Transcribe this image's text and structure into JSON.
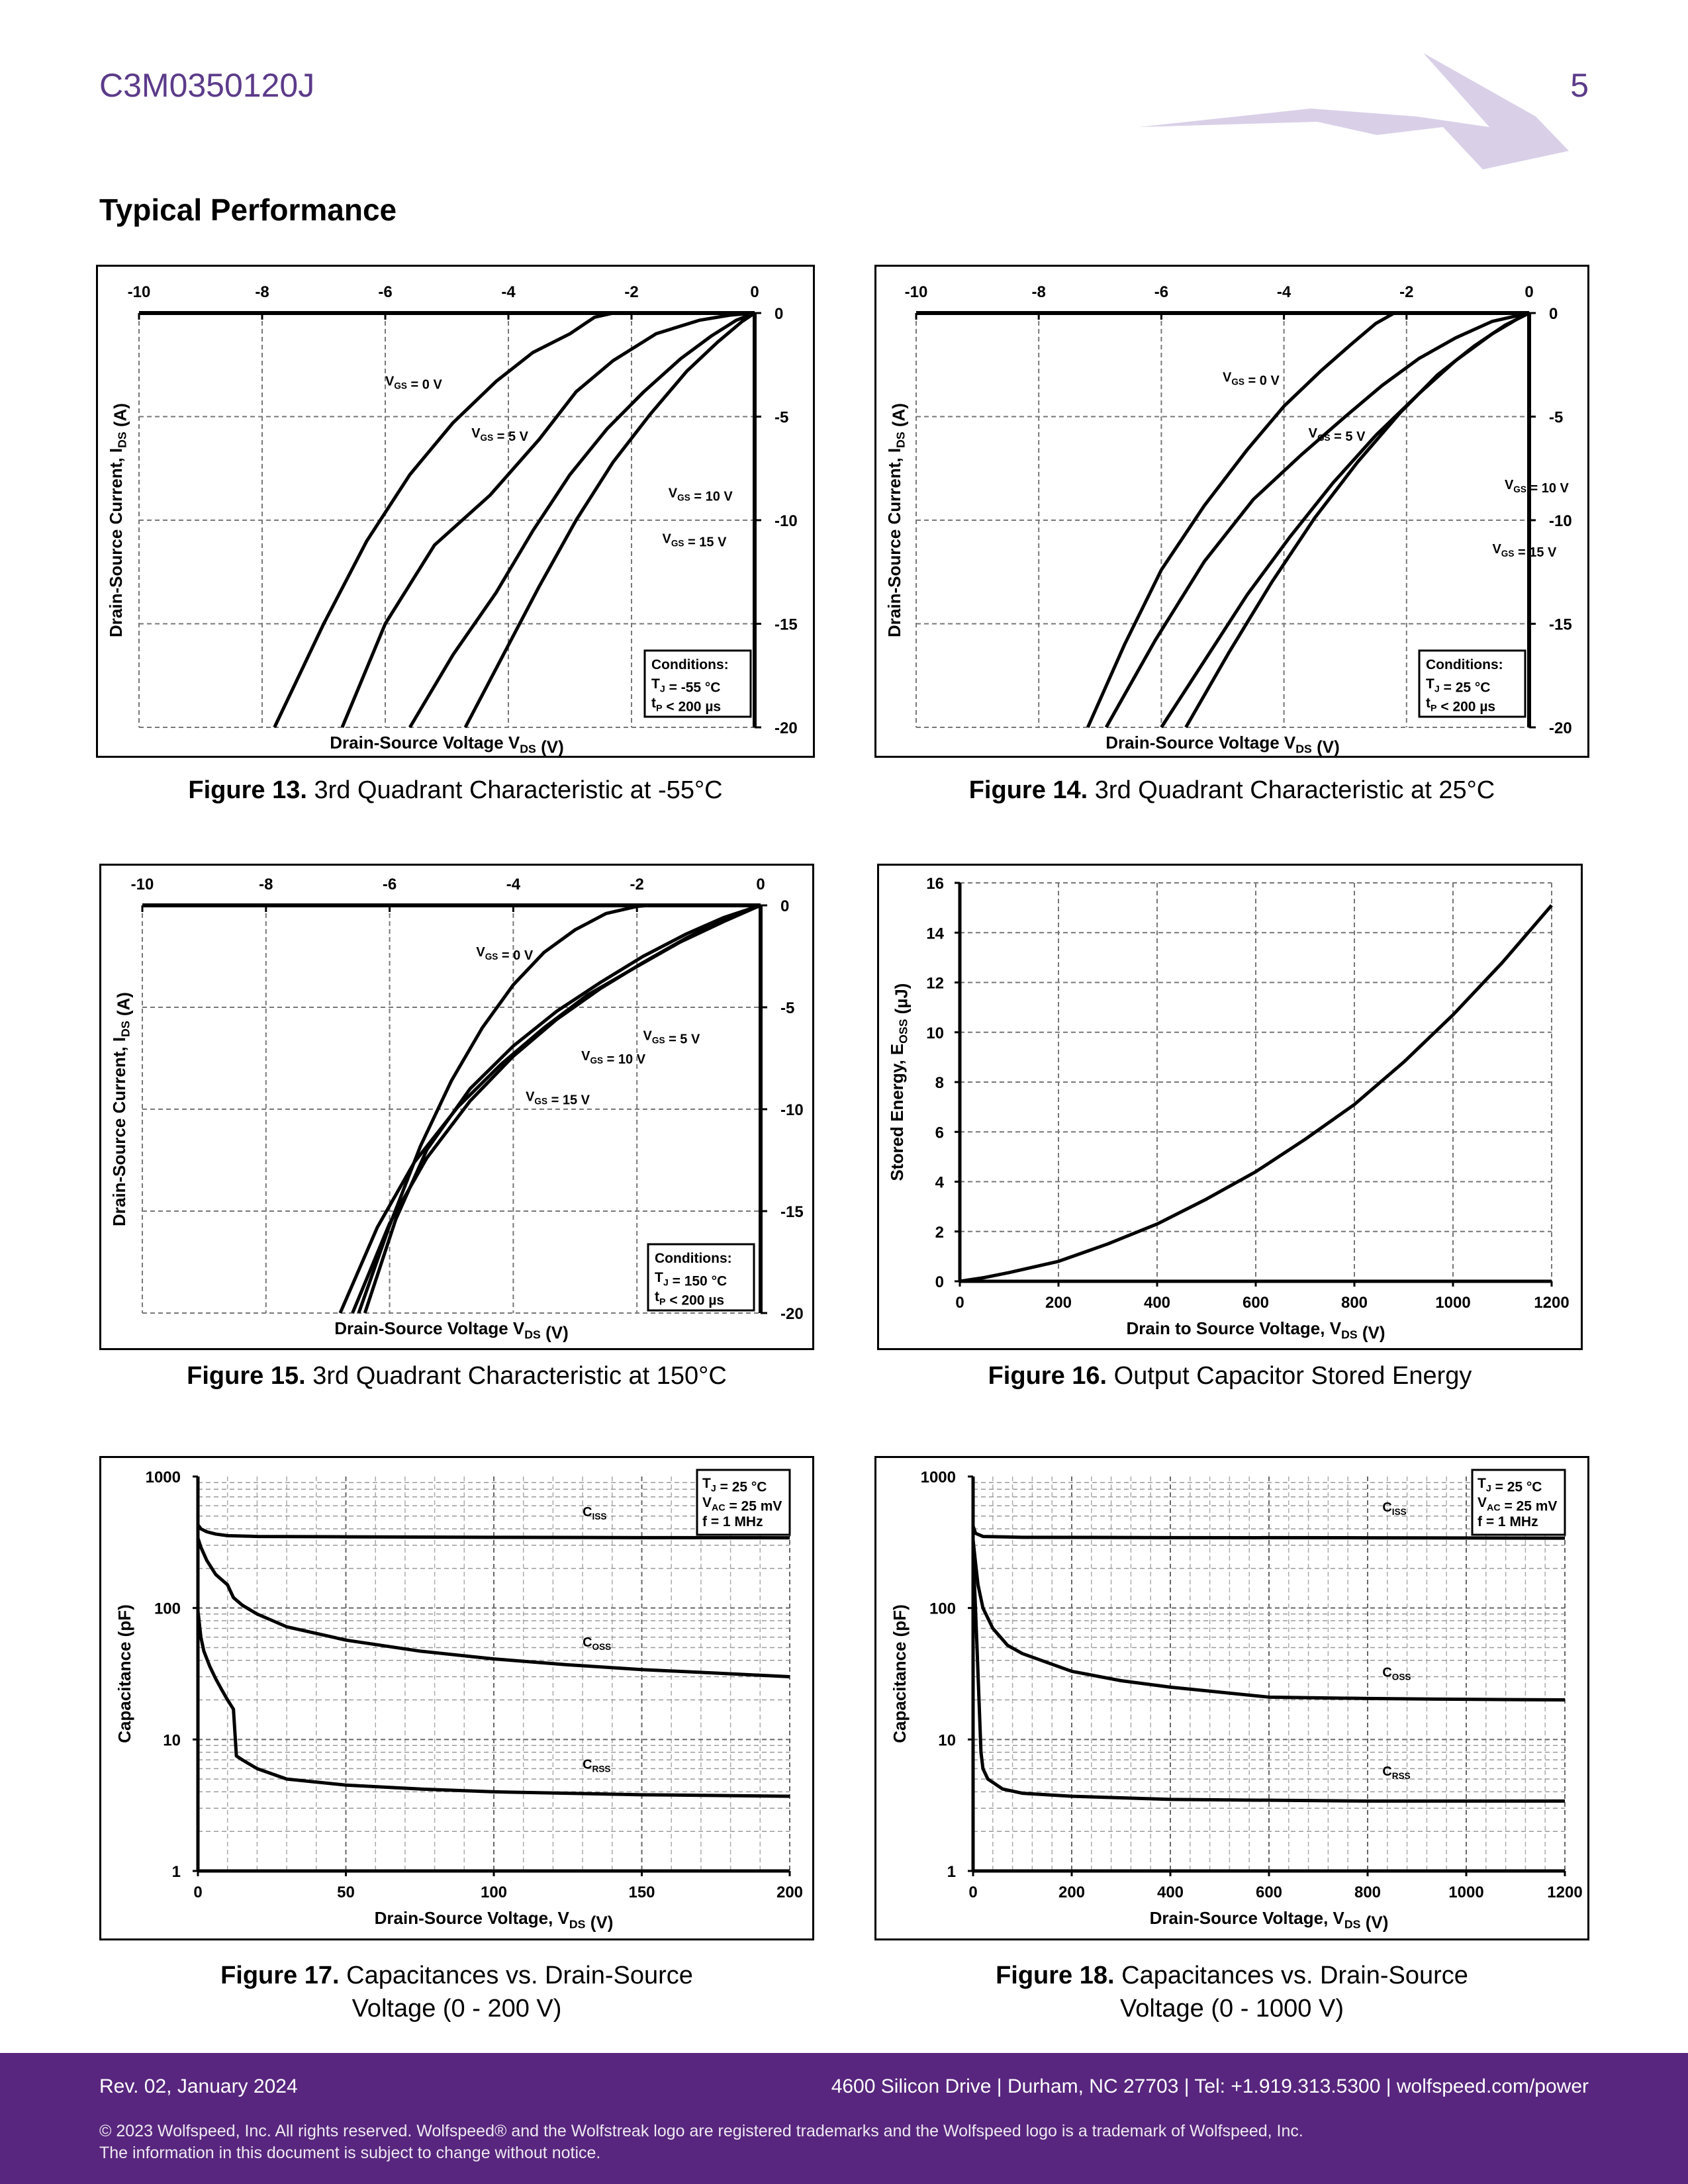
{
  "header": {
    "part_number": "C3M0350120J",
    "page_number": "5",
    "section_title": "Typical Performance"
  },
  "footer": {
    "revision": "Rev. 02, January 2024",
    "address": "4600 Silicon Drive  |  Durham, NC 27703  |  Tel: +1.919.313.5300  |  wolfspeed.com/power",
    "legal_line1": "© 2023 Wolfspeed, Inc. All rights reserved. Wolfspeed® and the Wolfstreak logo are registered trademarks and the Wolfspeed logo is a trademark of Wolfspeed, Inc.",
    "legal_line2": "The information in this document is subject to change without notice."
  },
  "captions": [
    {
      "label": "Figure 13.",
      "text": " 3rd Quadrant Characteristic at -55°C"
    },
    {
      "label": "Figure 14.",
      "text": " 3rd Quadrant Characteristic at 25°C"
    },
    {
      "label": "Figure 15.",
      "text": " 3rd Quadrant Characteristic at 150°C"
    },
    {
      "label": "Figure 16.",
      "text": " Output Capacitor Stored Energy"
    },
    {
      "label": "Figure 17.",
      "text": " Capacitances vs. Drain-Source",
      "line2": "Voltage (0 - 200 V)"
    },
    {
      "label": "Figure 18.",
      "text": " Capacitances vs. Drain-Source",
      "line2": "Voltage (0 - 1000 V)"
    }
  ],
  "colors": {
    "brand_purple": "#58267e",
    "header_purple": "#5c3b8a",
    "logo_lilac": "#d9d0e8"
  },
  "chart_data": [
    {
      "type": "line",
      "id": "fig13",
      "xlabel": "Drain-Source Voltage V_DS (V)",
      "ylabel": "Drain-Source Current, I_DS (A)",
      "xlim": [
        -10,
        0
      ],
      "ylim": [
        -20,
        0
      ],
      "x_ticks": [
        -10,
        -8,
        -6,
        -4,
        -2,
        0
      ],
      "y_ticks": [
        0,
        -5,
        -10,
        -15,
        -20
      ],
      "conditions": [
        "Conditions:",
        "T_J = -55 °C",
        "t_p < 200 µs"
      ],
      "series": [
        {
          "name": "V_GS = 0 V",
          "x": [
            -7.8,
            -7.0,
            -6.3,
            -5.6,
            -4.9,
            -4.2,
            -3.6,
            -3.0,
            -2.6,
            -2.3,
            -1.5,
            0
          ],
          "y": [
            -20,
            -15,
            -11,
            -7.8,
            -5.3,
            -3.3,
            -1.9,
            -1.0,
            -0.2,
            0,
            0,
            0
          ]
        },
        {
          "name": "V_GS = 5 V",
          "x": [
            -6.7,
            -6.0,
            -5.2,
            -4.3,
            -3.5,
            -2.9,
            -2.3,
            -1.6,
            -0.9,
            -0.4,
            0
          ],
          "y": [
            -20,
            -15,
            -11.2,
            -8.8,
            -6.1,
            -3.8,
            -2.3,
            -1.0,
            -0.35,
            -0.1,
            0
          ]
        },
        {
          "name": "V_GS = 10 V",
          "x": [
            -5.6,
            -4.9,
            -4.2,
            -3.6,
            -3.0,
            -2.4,
            -1.8,
            -1.2,
            -0.7,
            -0.3,
            0
          ],
          "y": [
            -20,
            -16.5,
            -13.5,
            -10.5,
            -7.8,
            -5.6,
            -3.8,
            -2.2,
            -1.1,
            -0.35,
            0
          ]
        },
        {
          "name": "V_GS = 15 V",
          "x": [
            -4.7,
            -4.1,
            -3.5,
            -2.9,
            -2.3,
            -1.7,
            -1.1,
            -0.6,
            -0.2,
            0
          ],
          "y": [
            -20,
            -16.6,
            -13.2,
            -10.0,
            -7.2,
            -4.9,
            -2.8,
            -1.4,
            -0.4,
            0
          ]
        }
      ],
      "annotations": [
        {
          "text": "V_GS = 0 V",
          "x": -6.0,
          "y": -3.5
        },
        {
          "text": "V_GS = 5 V",
          "x": -4.6,
          "y": -6.0
        },
        {
          "text": "V_GS = 10 V",
          "x": -1.4,
          "y": -8.9
        },
        {
          "text": "V_GS = 15 V",
          "x": -1.5,
          "y": -11.1
        }
      ]
    },
    {
      "type": "line",
      "id": "fig14",
      "xlabel": "Drain-Source Voltage V_DS (V)",
      "ylabel": "Drain-Source Current, I_DS (A)",
      "xlim": [
        -10,
        0
      ],
      "ylim": [
        -20,
        0
      ],
      "x_ticks": [
        -10,
        -8,
        -6,
        -4,
        -2,
        0
      ],
      "y_ticks": [
        0,
        -5,
        -10,
        -15,
        -20
      ],
      "conditions": [
        "Conditions:",
        "T_J = 25 °C",
        "t_p < 200 µs"
      ],
      "series": [
        {
          "name": "V_GS = 0 V",
          "x": [
            -7.2,
            -6.6,
            -6.0,
            -5.3,
            -4.6,
            -4.0,
            -3.4,
            -2.9,
            -2.5,
            -2.2,
            -1.5,
            0
          ],
          "y": [
            -20,
            -16,
            -12.4,
            -9.3,
            -6.6,
            -4.5,
            -2.8,
            -1.5,
            -0.5,
            0,
            0,
            0
          ]
        },
        {
          "name": "V_GS = 5 V",
          "x": [
            -6.9,
            -6.1,
            -5.3,
            -4.5,
            -3.7,
            -3.0,
            -2.4,
            -1.8,
            -1.2,
            -0.6,
            0
          ],
          "y": [
            -20,
            -15.8,
            -12,
            -9.0,
            -6.8,
            -5.0,
            -3.5,
            -2.2,
            -1.2,
            -0.4,
            0
          ]
        },
        {
          "name": "V_GS = 10 V",
          "x": [
            -6.0,
            -5.3,
            -4.6,
            -3.9,
            -3.2,
            -2.5,
            -1.8,
            -1.2,
            -0.6,
            -0.2,
            0
          ],
          "y": [
            -20,
            -16.8,
            -13.6,
            -10.8,
            -8.2,
            -5.9,
            -3.9,
            -2.3,
            -1.0,
            -0.3,
            0
          ]
        },
        {
          "name": "V_GS = 15 V",
          "x": [
            -5.6,
            -4.9,
            -4.2,
            -3.5,
            -2.8,
            -2.1,
            -1.5,
            -0.9,
            -0.4,
            0
          ],
          "y": [
            -20,
            -16.4,
            -13.0,
            -9.9,
            -7.2,
            -4.8,
            -3.0,
            -1.6,
            -0.6,
            0
          ]
        }
      ],
      "annotations": [
        {
          "text": "V_GS = 0 V",
          "x": -5.0,
          "y": -3.3
        },
        {
          "text": "V_GS = 5 V",
          "x": -3.6,
          "y": -6.0
        },
        {
          "text": "V_GS = 10 V",
          "x": -0.4,
          "y": -8.5
        },
        {
          "text": "V_GS = 15 V",
          "x": -0.6,
          "y": -11.6
        }
      ]
    },
    {
      "type": "line",
      "id": "fig15",
      "xlabel": "Drain-Source Voltage V_DS (V)",
      "ylabel": "Drain-Source Current, I_DS (A)",
      "xlim": [
        -10,
        0
      ],
      "ylim": [
        -20,
        0
      ],
      "x_ticks": [
        -10,
        -8,
        -6,
        -4,
        -2,
        0
      ],
      "y_ticks": [
        0,
        -5,
        -10,
        -15,
        -20
      ],
      "conditions": [
        "Conditions:",
        "T_J = 150 °C",
        "t_p < 200 µs"
      ],
      "series": [
        {
          "name": "V_GS = 0 V",
          "x": [
            -6.5,
            -6.0,
            -5.5,
            -5.0,
            -4.5,
            -4.0,
            -3.5,
            -3.0,
            -2.5,
            -2.0,
            -1.8,
            0
          ],
          "y": [
            -20,
            -15.7,
            -11.8,
            -8.6,
            -6.0,
            -3.9,
            -2.3,
            -1.2,
            -0.4,
            -0.05,
            0,
            0
          ]
        },
        {
          "name": "V_GS = 5 V",
          "x": [
            -6.4,
            -5.9,
            -5.4,
            -4.7,
            -4.0,
            -3.3,
            -2.6,
            -1.9,
            -1.2,
            -0.6,
            0
          ],
          "y": [
            -20,
            -15.4,
            -12.0,
            -9.0,
            -6.9,
            -5.2,
            -3.8,
            -2.5,
            -1.4,
            -0.6,
            0
          ]
        },
        {
          "name": "V_GS = 10 V",
          "x": [
            -6.6,
            -6.0,
            -5.4,
            -4.7,
            -4.0,
            -3.3,
            -2.6,
            -1.9,
            -1.2,
            -0.6,
            0
          ],
          "y": [
            -20,
            -15.6,
            -12.4,
            -9.6,
            -7.4,
            -5.6,
            -4.1,
            -2.8,
            -1.6,
            -0.7,
            0
          ]
        },
        {
          "name": "V_GS = 15 V",
          "x": [
            -6.8,
            -6.2,
            -5.6,
            -4.9,
            -4.2,
            -3.5,
            -2.8,
            -2.0,
            -1.3,
            -0.6,
            0
          ],
          "y": [
            -20,
            -15.8,
            -12.6,
            -9.9,
            -7.8,
            -6.0,
            -4.4,
            -3.0,
            -1.8,
            -0.8,
            0
          ]
        }
      ],
      "annotations": [
        {
          "text": "V_GS = 0 V",
          "x": -4.6,
          "y": -2.5
        },
        {
          "text": "V_GS = 5 V",
          "x": -1.9,
          "y": -6.6
        },
        {
          "text": "V_GS = 10 V",
          "x": -2.9,
          "y": -7.6
        },
        {
          "text": "V_GS = 15 V",
          "x": -3.8,
          "y": -9.6
        }
      ]
    },
    {
      "type": "line",
      "id": "fig16",
      "xlabel": "Drain to Source Voltage, V_DS (V)",
      "ylabel": "Stored Energy, E_OSS (µJ)",
      "xlim": [
        0,
        1200
      ],
      "ylim": [
        0,
        16
      ],
      "x_ticks": [
        0,
        200,
        400,
        600,
        800,
        1000,
        1200
      ],
      "y_ticks": [
        0,
        2,
        4,
        6,
        8,
        10,
        12,
        14,
        16
      ],
      "series": [
        {
          "name": "",
          "x": [
            0,
            50,
            100,
            200,
            300,
            400,
            500,
            600,
            700,
            800,
            900,
            1000,
            1100,
            1200
          ],
          "y": [
            0,
            0.15,
            0.35,
            0.8,
            1.5,
            2.3,
            3.3,
            4.4,
            5.7,
            7.1,
            8.8,
            10.7,
            12.8,
            15.1
          ]
        }
      ]
    },
    {
      "type": "line",
      "id": "fig17",
      "xlabel": "Drain-Source Voltage, V_DS (V)",
      "ylabel": "Capacitance (pF)",
      "xlim": [
        0,
        200
      ],
      "ylim": [
        1,
        1000
      ],
      "yscale": "log",
      "x_ticks": [
        0,
        50,
        100,
        150,
        200
      ],
      "y_ticks": [
        1,
        10,
        100,
        1000
      ],
      "conditions": [
        "T_J = 25 °C",
        "V_AC = 25 mV",
        "f = 1 MHz"
      ],
      "series": [
        {
          "name": "C_iss",
          "x": [
            0,
            1,
            3,
            6,
            10,
            20,
            50,
            100,
            150,
            200
          ],
          "y": [
            430,
            400,
            380,
            365,
            355,
            350,
            348,
            345,
            343,
            342
          ]
        },
        {
          "name": "C_oss",
          "x": [
            0,
            1,
            3,
            6,
            10,
            12,
            15,
            20,
            30,
            50,
            75,
            100,
            125,
            150,
            175,
            200
          ],
          "y": [
            340,
            290,
            230,
            180,
            150,
            120,
            105,
            90,
            72,
            57,
            47,
            41,
            37,
            34,
            32,
            30
          ]
        },
        {
          "name": "C_rss",
          "x": [
            0,
            1,
            2,
            4,
            6,
            8,
            10,
            12,
            13,
            15,
            20,
            30,
            50,
            75,
            100,
            150,
            200
          ],
          "y": [
            95,
            60,
            47,
            36,
            29,
            24,
            20,
            17,
            7.5,
            7.0,
            6.0,
            5.0,
            4.5,
            4.2,
            4.0,
            3.8,
            3.7
          ]
        }
      ],
      "annotations": [
        {
          "text": "C_iss",
          "x": 130,
          "y": 500
        },
        {
          "text": "C_oss",
          "x": 130,
          "y": 51
        },
        {
          "text": "C_rss",
          "x": 130,
          "y": 6
        }
      ]
    },
    {
      "type": "line",
      "id": "fig18",
      "xlabel": "Drain-Source Voltage, V_DS (V)",
      "ylabel": "Capacitance (pF)",
      "xlim": [
        0,
        1200
      ],
      "ylim": [
        1,
        1000
      ],
      "yscale": "log",
      "x_ticks": [
        0,
        200,
        400,
        600,
        800,
        1000,
        1200
      ],
      "y_ticks": [
        1,
        10,
        100,
        1000
      ],
      "conditions": [
        "T_J = 25 °C",
        "V_AC = 25 mV",
        "f = 1 MHz"
      ],
      "series": [
        {
          "name": "C_iss",
          "x": [
            0,
            5,
            20,
            100,
            400,
            800,
            1200
          ],
          "y": [
            420,
            370,
            350,
            345,
            343,
            342,
            340
          ]
        },
        {
          "name": "C_oss",
          "x": [
            0,
            5,
            10,
            20,
            40,
            70,
            100,
            200,
            300,
            400,
            600,
            800,
            1000,
            1200
          ],
          "y": [
            330,
            220,
            150,
            100,
            70,
            52,
            45,
            33,
            28,
            25,
            21,
            20.5,
            20.2,
            20
          ]
        },
        {
          "name": "C_rss",
          "x": [
            0,
            4,
            8,
            12,
            16,
            20,
            30,
            60,
            100,
            200,
            400,
            800,
            1200
          ],
          "y": [
            250,
            120,
            50,
            20,
            8,
            6,
            5,
            4.2,
            3.9,
            3.7,
            3.5,
            3.4,
            3.4
          ]
        }
      ],
      "annotations": [
        {
          "text": "C_iss",
          "x": 830,
          "y": 540
        },
        {
          "text": "C_oss",
          "x": 830,
          "y": 30
        },
        {
          "text": "C_rss",
          "x": 830,
          "y": 5.3
        }
      ]
    }
  ]
}
